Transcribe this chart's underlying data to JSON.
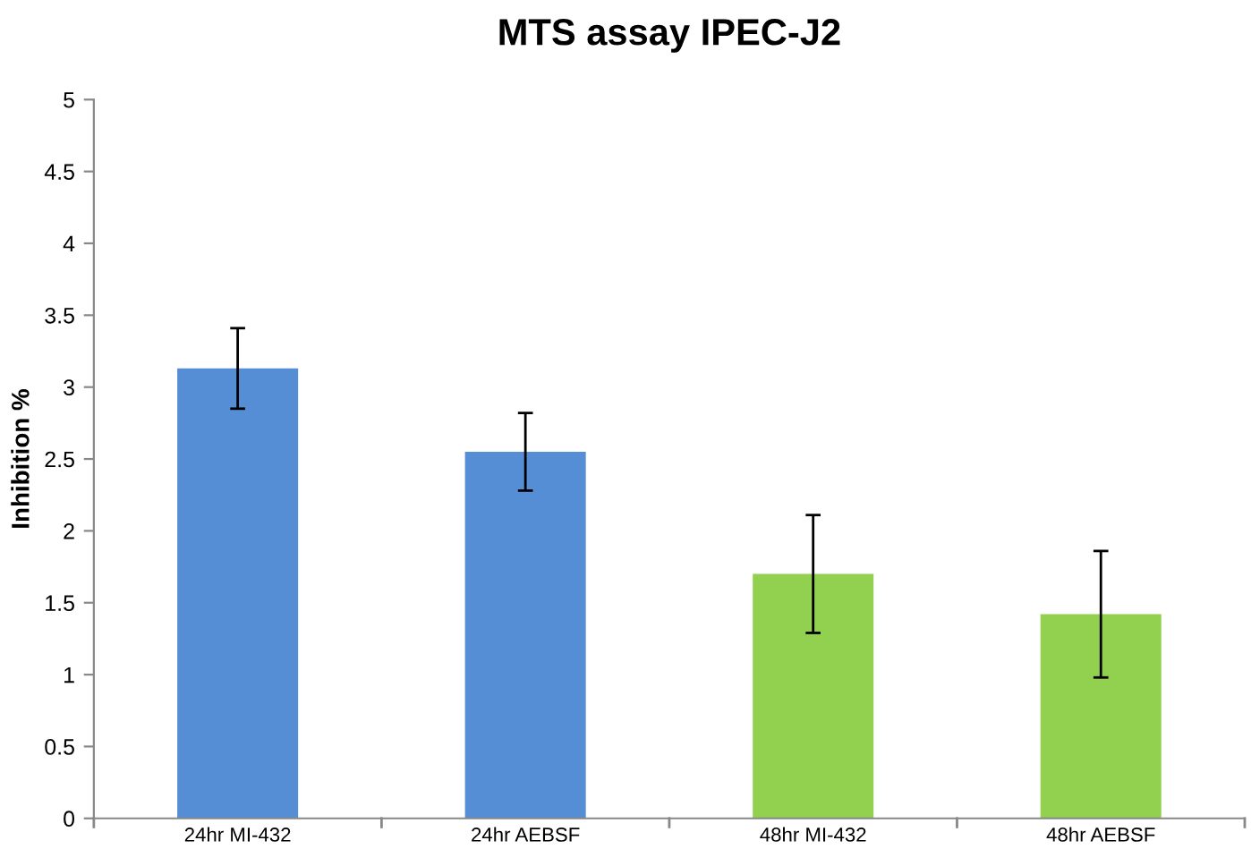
{
  "chart_data": {
    "type": "bar",
    "title": "MTS assay IPEC-J2",
    "ylabel": "Inhibition %",
    "categories": [
      "24hr MI-432",
      "24hr AEBSF",
      "48hr MI-432",
      "48hr AEBSF"
    ],
    "values": [
      3.13,
      2.55,
      1.7,
      1.42
    ],
    "errors": [
      0.28,
      0.27,
      0.41,
      0.44
    ],
    "colors": [
      "#558ed5",
      "#558ed5",
      "#92d050",
      "#92d050"
    ],
    "ylim": [
      0,
      5
    ],
    "yticks": [
      0,
      0.5,
      1,
      1.5,
      2,
      2.5,
      3,
      3.5,
      4,
      4.5,
      5
    ],
    "grid": false,
    "legend": false
  }
}
